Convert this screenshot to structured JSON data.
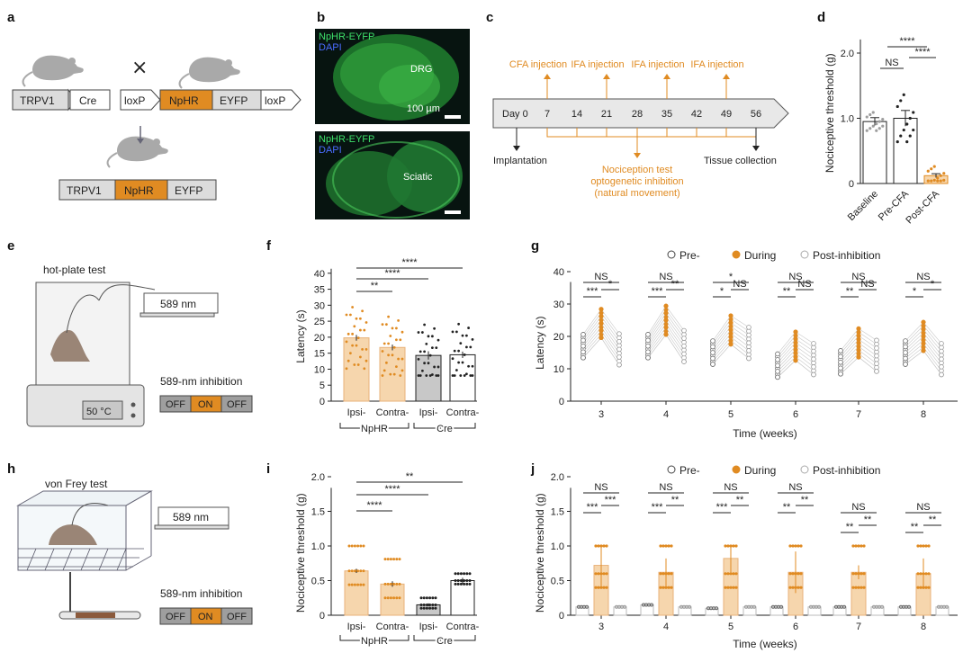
{
  "panel_letters": [
    "a",
    "b",
    "c",
    "d",
    "e",
    "f",
    "g",
    "h",
    "i",
    "j"
  ],
  "colors": {
    "accent": "#e08b22",
    "gray": "#9e9e9e",
    "dark": "#222222",
    "light_fill": "#f6d6ad"
  },
  "panel_a": {
    "box_trpv1": "TRPV1",
    "box_cre": "Cre",
    "box_loxp_left": "loxP",
    "box_npHR": "NpHR",
    "box_eyfp": "EYFP",
    "box_loxp_right": "loxP",
    "cross": "×",
    "result_trpv1": "TRPV1",
    "result_npHR": "NpHR",
    "result_eyfp": "EYFP"
  },
  "panel_b": {
    "top_label_1": "NpHR-EYFP",
    "top_label_2": "DAPI",
    "top_region": "DRG",
    "scale": "100 µm",
    "bottom_label_1": "NpHR-EYFP",
    "bottom_label_2": "DAPI",
    "bottom_region": "Sciatic"
  },
  "panel_c": {
    "start": "Day 0",
    "days": [
      "7",
      "14",
      "21",
      "28",
      "35",
      "42",
      "49",
      "56"
    ],
    "injections": [
      "CFA injection",
      "IFA injection",
      "IFA injection",
      "IFA injection"
    ],
    "implantation": "Implantation",
    "tissue": "Tissue collection",
    "test_lines": [
      "Nociception test",
      "optogenetic inhibition",
      "(natural movement)"
    ]
  },
  "panel_e": {
    "title": "hot-plate test",
    "laser": "589 nm",
    "inhibition": "589-nm inhibition",
    "temp": "50 °C",
    "switch": [
      "OFF",
      "ON",
      "OFF"
    ]
  },
  "panel_h": {
    "title": "von Frey test",
    "laser": "589 nm",
    "inhibition": "589-nm inhibition",
    "switch": [
      "OFF",
      "ON",
      "OFF"
    ]
  },
  "chart_data": [
    {
      "panel": "d",
      "type": "bar",
      "categories": [
        "Baseline",
        "Pre-CFA",
        "Post-CFA"
      ],
      "values": [
        0.95,
        1.0,
        0.12
      ],
      "errors": [
        0.06,
        0.12,
        0.03
      ],
      "ylabel": "Nociceptive threshold (g)",
      "ylim": [
        0,
        2.4
      ],
      "yticks": [
        "0",
        "1.0",
        "2.0"
      ],
      "significance": [
        {
          "from": 1,
          "to": 2,
          "label": "NS"
        },
        {
          "from": 1,
          "to": 3,
          "label": "****"
        },
        {
          "from": 2,
          "to": 3,
          "label": "****"
        }
      ]
    },
    {
      "panel": "f",
      "type": "bar",
      "categories": [
        "Ipsi-",
        "Contra-",
        "Ipsi-",
        "Contra-"
      ],
      "groups": [
        "NpHR",
        "Cre"
      ],
      "values": [
        19.8,
        16.8,
        14.3,
        14.5
      ],
      "errors": [
        0.9,
        0.9,
        1.3,
        1.0
      ],
      "ylabel": "Latency (s)",
      "ylim": [
        0,
        45
      ],
      "yticks": [
        "0",
        "5",
        "10",
        "15",
        "20",
        "25",
        "30",
        "35",
        "40"
      ],
      "significance": [
        {
          "from": 1,
          "to": 2,
          "label": "**"
        },
        {
          "from": 1,
          "to": 3,
          "label": "****"
        },
        {
          "from": 1,
          "to": 4,
          "label": "****"
        }
      ]
    },
    {
      "panel": "g",
      "type": "scatter",
      "legend": [
        "Pre-",
        "During",
        "Post-inhibition"
      ],
      "xlabel": "Time (weeks)",
      "ylabel": "Latency (s)",
      "ylim": [
        0,
        40
      ],
      "yticks": [
        "0",
        "10",
        "20",
        "30",
        "40"
      ],
      "weeks": [
        "3",
        "4",
        "5",
        "6",
        "7",
        "8"
      ],
      "means": {
        "pre": [
          17,
          17,
          15,
          11,
          12,
          15
        ],
        "during": [
          24,
          25,
          22,
          17,
          18,
          20
        ],
        "post": [
          16,
          17,
          18,
          13,
          14,
          13
        ]
      },
      "significance": [
        [
          "NS",
          "***",
          "*"
        ],
        [
          "NS",
          "***",
          "**"
        ],
        [
          "*",
          "*",
          "NS"
        ],
        [
          "NS",
          "**",
          "NS"
        ],
        [
          "NS",
          "**",
          "NS"
        ],
        [
          "NS",
          "*",
          "*"
        ]
      ]
    },
    {
      "panel": "i",
      "type": "bar",
      "categories": [
        "Ipsi-",
        "Contra-",
        "Ipsi-",
        "Contra-"
      ],
      "groups": [
        "NpHR",
        "Cre"
      ],
      "values": [
        0.64,
        0.45,
        0.15,
        0.5
      ],
      "errors": [
        0.03,
        0.04,
        0.02,
        0.04
      ],
      "ylabel": "Nociceptive threshold (g)",
      "ylim": [
        0,
        2.0
      ],
      "yticks": [
        "0",
        "0.5",
        "1.0",
        "1.5",
        "2.0"
      ],
      "significance": [
        {
          "from": 1,
          "to": 2,
          "label": "****"
        },
        {
          "from": 1,
          "to": 3,
          "label": "****"
        },
        {
          "from": 1,
          "to": 4,
          "label": "**"
        }
      ]
    },
    {
      "panel": "j",
      "type": "bar",
      "legend": [
        "Pre-",
        "During",
        "Post-inhibition"
      ],
      "xlabel": "Time (weeks)",
      "ylabel": "Nociceptive threshold (g)",
      "ylim": [
        0,
        2.0
      ],
      "yticks": [
        "0",
        "0.5",
        "1.0",
        "1.5",
        "2.0"
      ],
      "weeks": [
        "3",
        "4",
        "5",
        "6",
        "7",
        "8"
      ],
      "means": {
        "pre": [
          0.12,
          0.15,
          0.1,
          0.12,
          0.12,
          0.12
        ],
        "during": [
          0.72,
          0.62,
          0.82,
          0.62,
          0.62,
          0.6
        ],
        "post": [
          0.12,
          0.12,
          0.12,
          0.12,
          0.12,
          0.12
        ]
      },
      "errors": {
        "during": [
          0.3,
          0.2,
          0.2,
          0.3,
          0.1,
          0.22
        ]
      },
      "significance": [
        [
          "NS",
          "***",
          "***"
        ],
        [
          "NS",
          "***",
          "**"
        ],
        [
          "NS",
          "***",
          "**"
        ],
        [
          "NS",
          "**",
          "**"
        ],
        [
          "NS",
          "**",
          "**"
        ],
        [
          "NS",
          "**",
          "**"
        ]
      ]
    }
  ]
}
